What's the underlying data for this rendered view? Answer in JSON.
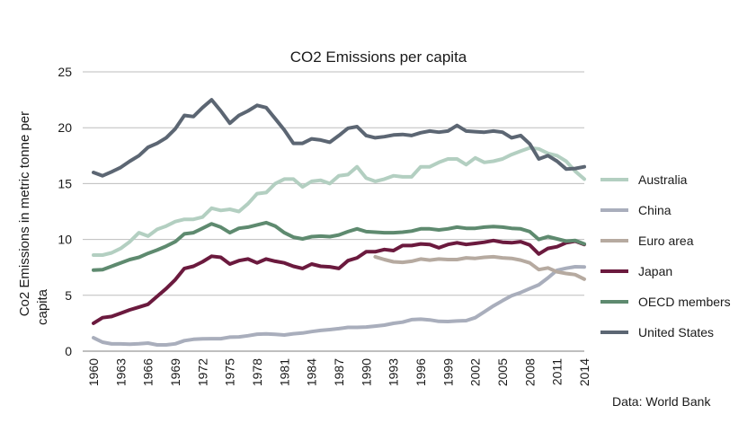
{
  "chart_data": {
    "type": "line",
    "title": "CO2 Emissions per capita",
    "xlabel": "",
    "ylabel_lines": [
      "Co2 Emissions in metric tonne per",
      "capita"
    ],
    "source": "Data: World Bank",
    "ylim": [
      0,
      25
    ],
    "yticks": [
      0,
      5,
      10,
      15,
      20,
      25
    ],
    "xlim": [
      1960,
      2014
    ],
    "xticks": [
      "1960",
      "1963",
      "1966",
      "1969",
      "1972",
      "1975",
      "1978",
      "1981",
      "1984",
      "1987",
      "1990",
      "1993",
      "1996",
      "1999",
      "2002",
      "2005",
      "2008",
      "2011",
      "2014"
    ],
    "grid": true,
    "legend_position": "right",
    "series": [
      {
        "name": "Australia",
        "color": "#b3cfc1",
        "x_start": 1960,
        "values": [
          8.6,
          8.6,
          8.8,
          9.2,
          9.8,
          10.6,
          10.3,
          10.9,
          11.2,
          11.6,
          11.8,
          11.8,
          12.0,
          12.8,
          12.6,
          12.7,
          12.5,
          13.2,
          14.1,
          14.2,
          15.0,
          15.4,
          15.4,
          14.7,
          15.2,
          15.3,
          15.0,
          15.7,
          15.8,
          16.5,
          15.5,
          15.2,
          15.4,
          15.7,
          15.6,
          15.6,
          16.5,
          16.5,
          16.9,
          17.2,
          17.2,
          16.7,
          17.3,
          16.9,
          17.0,
          17.2,
          17.6,
          17.9,
          18.2,
          18.1,
          17.7,
          17.5,
          17.0,
          16.1,
          15.4
        ]
      },
      {
        "name": "China",
        "color": "#a9aebc",
        "x_start": 1960,
        "values": [
          1.2,
          0.8,
          0.65,
          0.65,
          0.63,
          0.66,
          0.72,
          0.56,
          0.56,
          0.66,
          0.94,
          1.06,
          1.1,
          1.12,
          1.12,
          1.25,
          1.28,
          1.38,
          1.52,
          1.55,
          1.5,
          1.45,
          1.56,
          1.62,
          1.75,
          1.86,
          1.93,
          2.02,
          2.13,
          2.13,
          2.16,
          2.24,
          2.33,
          2.49,
          2.6,
          2.82,
          2.86,
          2.8,
          2.67,
          2.65,
          2.7,
          2.73,
          3.0,
          3.52,
          4.05,
          4.52,
          4.96,
          5.25,
          5.6,
          5.94,
          6.56,
          7.24,
          7.42,
          7.56,
          7.54
        ]
      },
      {
        "name": "Euro area",
        "color": "#b6aaa0",
        "x_start": 1991,
        "values": [
          8.45,
          8.2,
          8.0,
          7.95,
          8.05,
          8.25,
          8.15,
          8.25,
          8.2,
          8.2,
          8.35,
          8.3,
          8.4,
          8.45,
          8.35,
          8.3,
          8.15,
          7.9,
          7.3,
          7.45,
          7.1,
          6.95,
          6.85,
          6.45
        ]
      },
      {
        "name": "Japan",
        "color": "#6b1a3e",
        "x_start": 1960,
        "values": [
          2.5,
          3.0,
          3.1,
          3.4,
          3.7,
          3.95,
          4.2,
          4.9,
          5.6,
          6.4,
          7.4,
          7.6,
          8.0,
          8.5,
          8.4,
          7.8,
          8.1,
          8.25,
          7.9,
          8.25,
          8.05,
          7.9,
          7.6,
          7.4,
          7.8,
          7.6,
          7.55,
          7.4,
          8.1,
          8.35,
          8.9,
          8.9,
          9.1,
          9.0,
          9.45,
          9.45,
          9.6,
          9.55,
          9.25,
          9.55,
          9.7,
          9.55,
          9.65,
          9.75,
          9.9,
          9.75,
          9.7,
          9.8,
          9.5,
          8.7,
          9.2,
          9.35,
          9.7,
          9.85,
          9.55
        ]
      },
      {
        "name": "OECD members",
        "color": "#5e8a6f",
        "x_start": 1960,
        "values": [
          7.25,
          7.3,
          7.6,
          7.9,
          8.2,
          8.4,
          8.75,
          9.05,
          9.4,
          9.8,
          10.5,
          10.6,
          11.0,
          11.4,
          11.1,
          10.6,
          11.0,
          11.1,
          11.3,
          11.5,
          11.2,
          10.6,
          10.2,
          10.05,
          10.25,
          10.3,
          10.25,
          10.4,
          10.7,
          10.95,
          10.7,
          10.65,
          10.6,
          10.6,
          10.65,
          10.75,
          10.95,
          10.95,
          10.85,
          10.95,
          11.1,
          11.0,
          11.0,
          11.1,
          11.15,
          11.1,
          11.0,
          10.95,
          10.7,
          10.0,
          10.25,
          10.05,
          9.85,
          9.9,
          9.6
        ]
      },
      {
        "name": "United States",
        "color": "#5c6673",
        "x_start": 1960,
        "values": [
          16.0,
          15.7,
          16.05,
          16.45,
          17.0,
          17.5,
          18.25,
          18.6,
          19.1,
          19.9,
          21.1,
          21.0,
          21.8,
          22.5,
          21.5,
          20.4,
          21.1,
          21.5,
          22.0,
          21.8,
          20.8,
          19.8,
          18.6,
          18.6,
          19.0,
          18.9,
          18.7,
          19.3,
          19.95,
          20.1,
          19.3,
          19.1,
          19.2,
          19.35,
          19.4,
          19.3,
          19.55,
          19.7,
          19.6,
          19.7,
          20.2,
          19.7,
          19.65,
          19.6,
          19.7,
          19.6,
          19.1,
          19.3,
          18.55,
          17.2,
          17.5,
          17.0,
          16.3,
          16.35,
          16.5
        ]
      }
    ]
  }
}
